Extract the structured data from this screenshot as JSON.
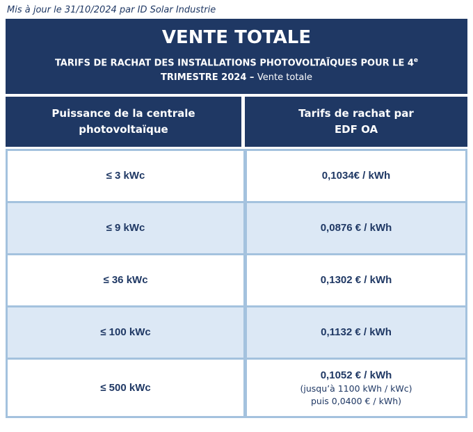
{
  "page": {
    "note": "Mis à jour le 31/10/2024 par ID Solar Industrie"
  },
  "banner": {
    "title": "VENTE TOTALE",
    "subtitle_line1": "TARIFS DE RACHAT DES INSTALLATIONS PHOTOVOLTAÏQUES POUR LE 4",
    "subtitle_superscript": "e",
    "subtitle_line2_bold": "TRIMESTRE 2024 – ",
    "subtitle_line2_regular": "Vente totale"
  },
  "table": {
    "header": {
      "col1_line1": "Puissance de la centrale",
      "col1_line2": "photovoltaïque",
      "col2_line1": "Tarifs de rachat par",
      "col2_line2": "EDF OA"
    },
    "rows": [
      {
        "power": "≤ 3 kWc",
        "tariff": "0,1034€ / kWh"
      },
      {
        "power": "≤ 9 kWc",
        "tariff": "0,0876 € / kWh"
      },
      {
        "power": "≤ 36 kWc",
        "tariff": "0,1302 € / kWh"
      },
      {
        "power": "≤ 100 kWc",
        "tariff": "0,1132 € / kWh"
      },
      {
        "power": "≤ 500 kWc",
        "tariff": "0,1052 € / kWh",
        "tariff_note1": "(jusqu’à 1100 kWh / kWc)",
        "tariff_note2": "puis 0,0400 € / kWh)"
      }
    ]
  },
  "colors": {
    "navy": "#1F3864",
    "row_alt_blue": "#DCE8F5",
    "table_border_blue": "#A4C2DE",
    "white": "#FFFFFF"
  }
}
